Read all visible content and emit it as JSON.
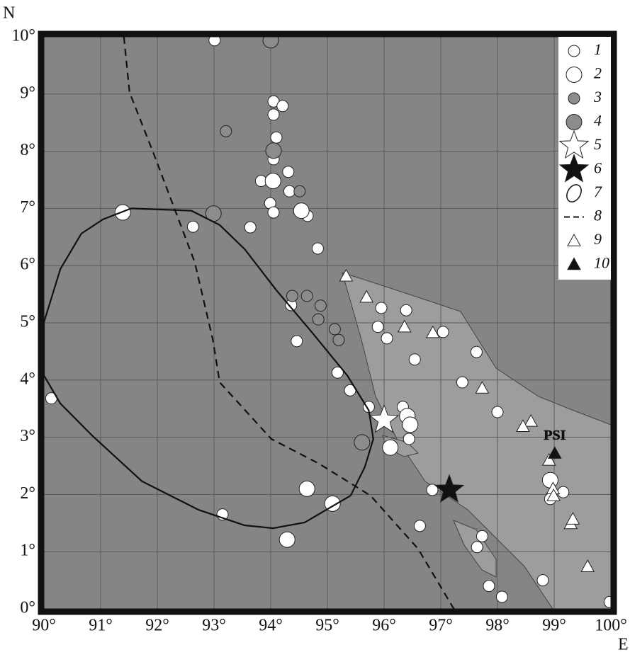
{
  "chart_data": {
    "type": "map",
    "y_label": "N",
    "x_label": "E",
    "xlim": [
      90,
      100
    ],
    "ylim": [
      0,
      10
    ],
    "xticks": [
      {
        "value": 90,
        "label": "90°"
      },
      {
        "value": 91,
        "label": "91°"
      },
      {
        "value": 92,
        "label": "92°"
      },
      {
        "value": 93,
        "label": "93°"
      },
      {
        "value": 94,
        "label": "94°"
      },
      {
        "value": 95,
        "label": "95°"
      },
      {
        "value": 96,
        "label": "96°"
      },
      {
        "value": 97,
        "label": "97°"
      },
      {
        "value": 98,
        "label": "98°"
      },
      {
        "value": 99,
        "label": "99°"
      },
      {
        "value": 100,
        "label": "100°"
      }
    ],
    "yticks": [
      {
        "value": 0,
        "label": "0°"
      },
      {
        "value": 1,
        "label": "1°"
      },
      {
        "value": 2,
        "label": "2°"
      },
      {
        "value": 3,
        "label": "3°"
      },
      {
        "value": 4,
        "label": "4°"
      },
      {
        "value": 5,
        "label": "5°"
      },
      {
        "value": 6,
        "label": "6°"
      },
      {
        "value": 7,
        "label": "7°"
      },
      {
        "value": 8,
        "label": "8°"
      },
      {
        "value": 9,
        "label": "9°"
      },
      {
        "value": 10,
        "label": "10°"
      }
    ],
    "grid": true,
    "series": [
      {
        "name": "1",
        "marker": "small-circle",
        "color": "#ffffff",
        "x": [
          93.01,
          94.05,
          94.21,
          94.05,
          94.1,
          94.05,
          94.31,
          93.83,
          93.99,
          94.33,
          94.05,
          92.63,
          93.64,
          94.65,
          94.83,
          94.36,
          94.46,
          95.18,
          95.4,
          95.73,
          95.95,
          95.89,
          96.05,
          96.39,
          96.54,
          97.04,
          97.38,
          97.63,
          98.0,
          96.33,
          96.44,
          90.13,
          93.15,
          96.63,
          96.85,
          97.73,
          97.64,
          97.85,
          98.08,
          98.8,
          98.93,
          99.16,
          99.98
        ],
        "values": [
          9.94,
          8.87,
          8.79,
          8.64,
          8.24,
          7.86,
          7.64,
          7.48,
          7.09,
          7.3,
          6.93,
          6.68,
          6.67,
          6.87,
          6.3,
          5.31,
          4.68,
          4.13,
          3.82,
          3.53,
          5.26,
          4.93,
          4.73,
          5.22,
          4.36,
          4.84,
          3.96,
          4.49,
          3.44,
          3.53,
          2.97,
          3.68,
          1.65,
          1.45,
          2.08,
          1.27,
          1.08,
          0.4,
          0.21,
          0.5,
          1.92,
          2.04,
          0.12
        ]
      },
      {
        "name": "2",
        "marker": "large-circle",
        "color": "#ffffff",
        "x": [
          91.39,
          94.64,
          95.09,
          94.29,
          96.11,
          96.41,
          96.46,
          98.93,
          94.04,
          94.54
        ],
        "values": [
          6.93,
          2.1,
          1.84,
          1.21,
          2.82,
          3.37,
          3.22,
          2.25,
          7.48,
          6.96
        ]
      },
      {
        "name": "3",
        "marker": "small-circle",
        "color": "#8c8c8c",
        "x": [
          93.21,
          94.51,
          94.38,
          94.64,
          94.88,
          94.84,
          95.13,
          95.2
        ],
        "values": [
          8.35,
          7.3,
          5.47,
          5.47,
          5.3,
          5.06,
          4.89,
          4.7
        ]
      },
      {
        "name": "4",
        "marker": "large-circle",
        "color": "#8c8c8c",
        "x": [
          94.0,
          92.99,
          94.05,
          95.61
        ],
        "values": [
          9.94,
          6.91,
          8.01,
          2.91
        ]
      },
      {
        "name": "5",
        "marker": "star",
        "color": "#ffffff",
        "x": [
          96.0
        ],
        "values": [
          3.3
        ]
      },
      {
        "name": "6",
        "marker": "star",
        "color": "#111111",
        "x": [
          97.15
        ],
        "values": [
          2.08
        ]
      },
      {
        "name": "7",
        "marker": "solid-line",
        "color": "#111111",
        "x": [
          90.0,
          90.29,
          90.66,
          91.04,
          91.54,
          92.6,
          93.1,
          93.54,
          94.1,
          94.73,
          95.35,
          95.73,
          95.81,
          95.66,
          95.41,
          94.6,
          94.04,
          93.54,
          92.73,
          91.73,
          90.85,
          90.29,
          90.0,
          90.0
        ],
        "values": [
          5.01,
          5.94,
          6.56,
          6.81,
          7.0,
          6.96,
          6.71,
          6.29,
          5.57,
          4.83,
          4.08,
          3.47,
          2.97,
          2.48,
          1.98,
          1.51,
          1.41,
          1.46,
          1.73,
          2.23,
          3.03,
          3.59,
          4.08,
          5.01
        ]
      },
      {
        "name": "8",
        "marker": "dashed-line",
        "color": "#111111",
        "x": [
          91.41,
          91.51,
          91.95,
          92.66,
          92.98,
          93.1,
          94.01,
          94.85,
          95.76,
          96.6,
          97.23
        ],
        "values": [
          10.0,
          9.03,
          7.92,
          6.06,
          4.7,
          3.96,
          2.97,
          2.54,
          1.98,
          1.05,
          0.0
        ]
      },
      {
        "name": "9",
        "marker": "triangle",
        "color": "#ffffff",
        "x": [
          95.33,
          95.69,
          96.36,
          96.86,
          97.73,
          98.59,
          98.45,
          98.91,
          98.98,
          98.99,
          99.29,
          99.33,
          99.59
        ],
        "values": [
          5.82,
          5.45,
          4.93,
          4.83,
          3.86,
          3.28,
          3.19,
          2.6,
          2.1,
          1.98,
          1.49,
          1.57,
          0.74
        ]
      },
      {
        "name": "10",
        "marker": "triangle",
        "color": "#111111",
        "x": [
          99.01
        ],
        "values": [
          2.72
        ],
        "point_labels": [
          "PSI"
        ]
      }
    ]
  }
}
